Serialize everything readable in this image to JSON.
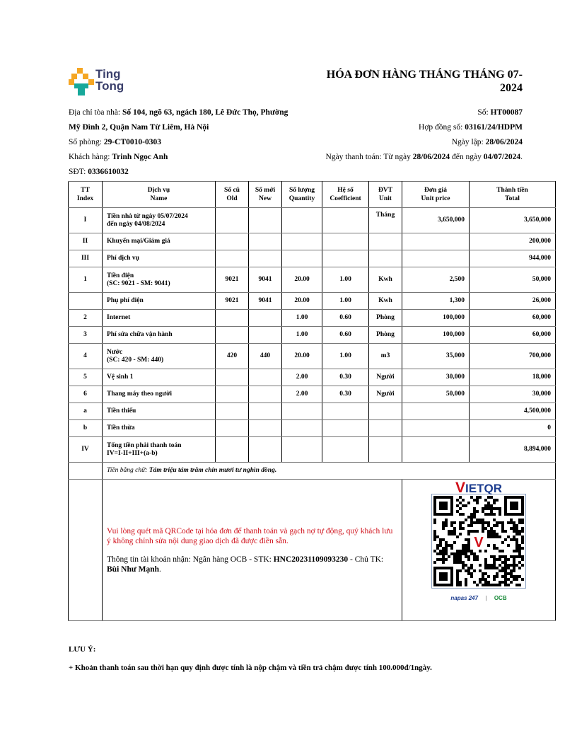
{
  "brand": {
    "name_line1": "Ting",
    "name_line2": "Tong",
    "colors": {
      "orange": "#f5a623",
      "teal": "#17a89a",
      "navy": "#3a3f6b"
    }
  },
  "title": "HÓA ĐƠN HÀNG THÁNG THÁNG 07-2024",
  "info_left": {
    "address_label": "Địa chỉ tòa nhà: ",
    "address_line1": "Số 104, ngõ 63, ngách 180, Lê Đức Thọ, Phường",
    "address_line2": "Mỹ Đình 2, Quận Nam Từ Liêm, Hà Nội",
    "room_label": "Số phòng: ",
    "room": "29-CT0010-0303",
    "customer_label": "Khách hàng: ",
    "customer": "Trinh Ngọc Anh",
    "phone_label": "SĐT: ",
    "phone": "0336610032"
  },
  "info_right": {
    "number_label": "Số: ",
    "number": "HT00087",
    "contract_label": "Hợp đồng số: ",
    "contract": "03161/24/HDPM",
    "date_label": "Ngày lập: ",
    "date": "28/06/2024",
    "payment_label": "Ngày thanh toán: Từ ngày ",
    "payment_from": "28/06/2024",
    "payment_mid": " đến ngày ",
    "payment_to": "04/07/2024",
    "payment_end": "."
  },
  "table": {
    "headers": [
      [
        "TT",
        "Index"
      ],
      [
        "Dịch vụ",
        "Name"
      ],
      [
        "Số cũ",
        "Old"
      ],
      [
        "Số mới",
        "New"
      ],
      [
        "Số lượng",
        "Quantity"
      ],
      [
        "Hệ số",
        "Coefficient"
      ],
      [
        "ĐVT",
        "Unit"
      ],
      [
        "Đơn giá",
        "Unit price"
      ],
      [
        "Thành tiền",
        "Total"
      ]
    ],
    "rows": [
      {
        "index": "I",
        "name": "Tiền nhà từ ngày 05/07/2024",
        "name2": "đến ngày 04/08/2024",
        "old": "",
        "new": "",
        "qty": "",
        "coef": "",
        "unit": "Tháng",
        "price": "3,650,000",
        "total": "3,650,000"
      },
      {
        "index": "II",
        "name": "Khuyến mại/Giảm giá",
        "name2": "",
        "old": "",
        "new": "",
        "qty": "",
        "coef": "",
        "unit": "",
        "price": "",
        "total": "200,000"
      },
      {
        "index": "III",
        "name": "Phí dịch vụ",
        "name2": "",
        "old": "",
        "new": "",
        "qty": "",
        "coef": "",
        "unit": "",
        "price": "",
        "total": "944,000"
      },
      {
        "index": "1",
        "name": "Tiền điện",
        "name2": "(SC: 9021 - SM: 9041)",
        "old": "9021",
        "new": "9041",
        "qty": "20.00",
        "coef": "1.00",
        "unit": "Kwh",
        "price": "2,500",
        "total": "50,000"
      },
      {
        "index": "",
        "name": "Phụ phí điện",
        "name2": "",
        "old": "9021",
        "new": "9041",
        "qty": "20.00",
        "coef": "1.00",
        "unit": "Kwh",
        "price": "1,300",
        "total": "26,000"
      },
      {
        "index": "2",
        "name": "Internet",
        "name2": "",
        "old": "",
        "new": "",
        "qty": "1.00",
        "coef": "0.60",
        "unit": "Phòng",
        "price": "100,000",
        "total": "60,000"
      },
      {
        "index": "3",
        "name": "Phí sửa chữa vận hành",
        "name2": "",
        "old": "",
        "new": "",
        "qty": "1.00",
        "coef": "0.60",
        "unit": "Phòng",
        "price": "100,000",
        "total": "60,000"
      },
      {
        "index": "4",
        "name": "Nước",
        "name2": "(SC: 420 - SM: 440)",
        "old": "420",
        "new": "440",
        "qty": "20.00",
        "coef": "1.00",
        "unit": "m3",
        "price": "35,000",
        "total": "700,000"
      },
      {
        "index": "5",
        "name": "Vệ sinh 1",
        "name2": "",
        "old": "",
        "new": "",
        "qty": "2.00",
        "coef": "0.30",
        "unit": "Người",
        "price": "30,000",
        "total": "18,000"
      },
      {
        "index": "6",
        "name": "Thang máy theo người",
        "name2": "",
        "old": "",
        "new": "",
        "qty": "2.00",
        "coef": "0.30",
        "unit": "Người",
        "price": "50,000",
        "total": "30,000"
      },
      {
        "index": "a",
        "name": "Tiền thiếu",
        "name2": "",
        "old": "",
        "new": "",
        "qty": "",
        "coef": "",
        "unit": "",
        "price": "",
        "total": "4,500,000"
      },
      {
        "index": "b",
        "name": "Tiền thừa",
        "name2": "",
        "old": "",
        "new": "",
        "qty": "",
        "coef": "",
        "unit": "",
        "price": "",
        "total": "0"
      },
      {
        "index": "IV",
        "name": "Tổng tiền phải thanh toán",
        "name2": "IV=I-II+III+(a-b)",
        "old": "",
        "new": "",
        "qty": "",
        "coef": "",
        "unit": "",
        "price": "",
        "total": "8,894,000"
      }
    ],
    "words_label": "Tiền bằng chữ: ",
    "words": "Tám triệu tám trăm chín mươi tư nghìn đồng."
  },
  "payment": {
    "notice": "Vui lòng quét mã QRCode tại hóa đơn để thanh toán và gạch nợ tự động, quý khách lưu ý không chỉnh sửa nội dung giao dịch đã được điền sẵn.",
    "account_label": "Thông tin tài khoản nhận: Ngân hàng OCB - STK: ",
    "account": "HNC20231109093230",
    "holder_label": " - Chủ TK: ",
    "holder": "Bùi Như Mạnh",
    "holder_end": ".",
    "vietqr": "VIETQR",
    "napas": "napas 247",
    "ocb": "OCB"
  },
  "notes": {
    "heading": "LƯU Ý:",
    "line1": "+ Khoản thanh toán sau thời hạn quy định được tính là nộp chậm và tiền trả chậm được tính 100.000đ/1ngày."
  }
}
